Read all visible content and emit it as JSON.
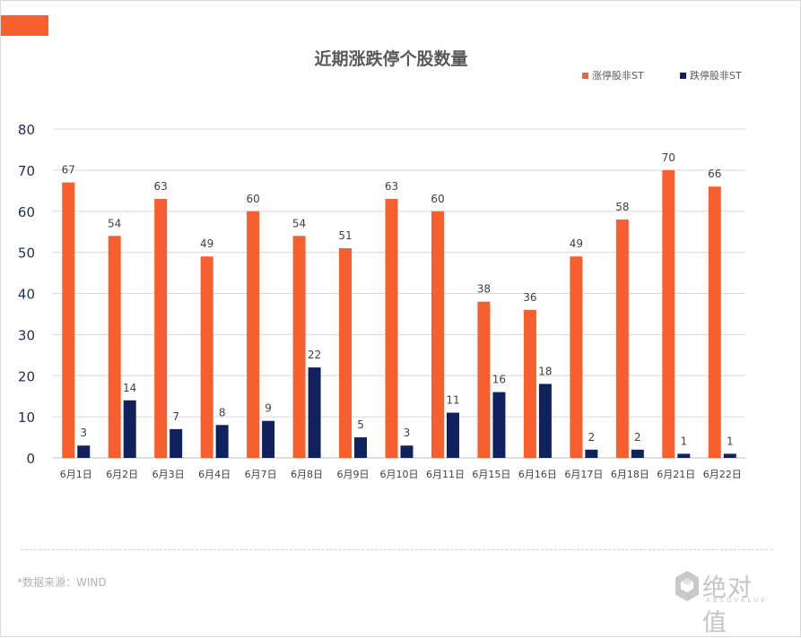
{
  "header": {
    "accent_color": "#f75f2e"
  },
  "footer": {
    "source": "*数据来源：WIND",
    "logo_text": "绝对值",
    "logo_sub": "ABSOVALUE",
    "logo_icon": "hexagon-cube-icon"
  },
  "chart_data": {
    "type": "bar",
    "title": "近期涨跌停个股数量",
    "categories": [
      "6月1日",
      "6月2日",
      "6月3日",
      "6月4日",
      "6月7日",
      "6月8日",
      "6月9日",
      "6月10日",
      "6月11日",
      "6月15日",
      "6月16日",
      "6月17日",
      "6月18日",
      "6月21日",
      "6月22日"
    ],
    "series": [
      {
        "name": "涨停股非ST",
        "color": "#f75f2e",
        "values": [
          67,
          54,
          63,
          49,
          60,
          54,
          51,
          63,
          60,
          38,
          36,
          49,
          58,
          70,
          66
        ]
      },
      {
        "name": "跌停股非ST",
        "color": "#10215e",
        "values": [
          3,
          14,
          7,
          8,
          9,
          22,
          5,
          3,
          11,
          16,
          18,
          2,
          2,
          1,
          1
        ]
      }
    ],
    "ylim": [
      0,
      80
    ],
    "yticks": [
      0,
      10,
      20,
      30,
      40,
      50,
      60,
      70,
      80
    ],
    "xlabel": "",
    "ylabel": "",
    "grid": true,
    "legend": "top-right",
    "data_labels": true
  }
}
